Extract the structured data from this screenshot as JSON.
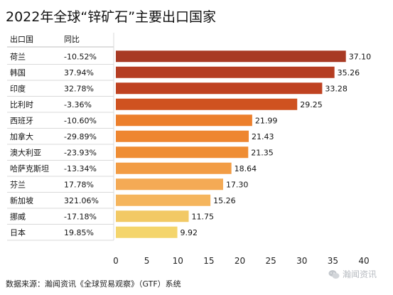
{
  "title": "2022年全球“锌矿石”主要出口国家",
  "headers": {
    "country": "出口国",
    "yoy": "同比"
  },
  "source": "数据来源：瀚闻资讯《全球贸易观察》（GTF）系统",
  "watermark": "瀚闻资讯",
  "chart_data": {
    "type": "bar",
    "orientation": "horizontal",
    "title": "2022年全球“锌矿石”主要出口国家",
    "categories": [
      "荷兰",
      "韩国",
      "印度",
      "比利时",
      "西班牙",
      "加拿大",
      "澳大利亚",
      "哈萨克斯坦",
      "芬兰",
      "新加坡",
      "挪威",
      "日本"
    ],
    "values": [
      37.1,
      35.26,
      33.28,
      29.25,
      21.99,
      21.43,
      21.35,
      18.64,
      17.3,
      15.26,
      11.75,
      9.92
    ],
    "value_labels": [
      "37.10",
      "35.26",
      "33.28",
      "29.25",
      "21.99",
      "21.43",
      "21.35",
      "18.64",
      "17.30",
      "15.26",
      "11.75",
      "9.92"
    ],
    "yoy": [
      "-10.52%",
      "37.94%",
      "32.78%",
      "-3.36%",
      "-10.60%",
      "-29.89%",
      "-23.93%",
      "-13.34%",
      "17.78%",
      "321.06%",
      "-17.18%",
      "19.85%"
    ],
    "xlim": [
      0,
      40
    ],
    "xticks": [
      0,
      5,
      10,
      15,
      20,
      25,
      30,
      35,
      40
    ],
    "colors": [
      "#a83a24",
      "#b53d22",
      "#bf4221",
      "#cf5220",
      "#ec7f2c",
      "#ee8630",
      "#ef8d34",
      "#f29c44",
      "#f4aa55",
      "#f5b55d",
      "#f2c965",
      "#f4d56c"
    ],
    "grid": false,
    "legend": "none"
  }
}
